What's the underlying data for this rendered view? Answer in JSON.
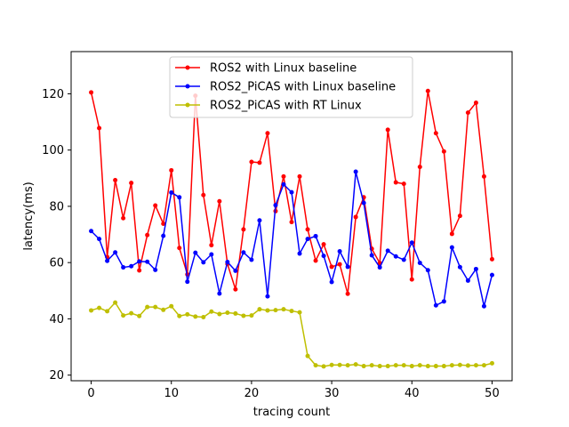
{
  "chart_data": {
    "type": "line",
    "title": "",
    "xlabel": "tracing count",
    "ylabel": "latency(ms)",
    "xlim": [
      -2.5,
      52.5
    ],
    "ylim": [
      18,
      135
    ],
    "xticks": [
      0,
      10,
      20,
      30,
      40,
      50
    ],
    "yticks": [
      20,
      40,
      60,
      80,
      100,
      120
    ],
    "grid": false,
    "legend_position": "upper center",
    "x": [
      0,
      1,
      2,
      3,
      4,
      5,
      6,
      7,
      8,
      9,
      10,
      11,
      12,
      13,
      14,
      15,
      16,
      17,
      18,
      19,
      20,
      21,
      22,
      23,
      24,
      25,
      26,
      27,
      28,
      29,
      30,
      31,
      32,
      33,
      34,
      35,
      36,
      37,
      38,
      39,
      40,
      41,
      42,
      43,
      44,
      45,
      46,
      47,
      48,
      49,
      50
    ],
    "series": [
      {
        "name": "ROS2 with Linux baseline",
        "color": "#ff0000",
        "values": [
          120.5,
          107.8,
          62,
          89.3,
          75.8,
          88.3,
          57.2,
          69.8,
          80.3,
          73.8,
          92.8,
          65.2,
          55.8,
          119.3,
          84,
          66.2,
          81.8,
          59.5,
          50.5,
          71.8,
          95.8,
          95.5,
          106,
          78.3,
          90.6,
          74.4,
          90.6,
          71.8,
          60.7,
          66.5,
          58.5,
          59.4,
          48.9,
          76.2,
          83.2,
          64.9,
          59.8,
          107.2,
          88.5,
          88,
          54,
          94,
          121,
          106,
          99.5,
          70.2,
          76.6,
          113.3,
          116.8,
          90.6,
          61.2
        ]
      },
      {
        "name": "ROS2_PiCAS with Linux baseline",
        "color": "#0000ff",
        "values": [
          71.2,
          68.4,
          60.6,
          63.6,
          58.3,
          58.7,
          60.4,
          60.3,
          57.4,
          69.5,
          84.9,
          83.2,
          53.2,
          63.5,
          60.1,
          62.9,
          49,
          60.2,
          57.1,
          63.6,
          61,
          75,
          48,
          80.4,
          87.8,
          85,
          63.2,
          68.4,
          69.4,
          62.4,
          53.1,
          64,
          58.5,
          92.3,
          81.2,
          62.6,
          58.3,
          64.2,
          62.2,
          61,
          67.1,
          59.9,
          57.3,
          44.8,
          46.2,
          65.4,
          58.4,
          53.6,
          57.7,
          44.5,
          55.6
        ]
      },
      {
        "name": "ROS2_PiCAS with RT Linux",
        "color": "#bfbf00",
        "values": [
          43,
          43.9,
          42.7,
          45.8,
          41.2,
          42,
          41,
          44.2,
          44.2,
          43.2,
          44.5,
          41,
          41.6,
          40.8,
          40.6,
          42.6,
          41.7,
          42.2,
          41.9,
          41.1,
          41.2,
          43.4,
          43,
          43.1,
          43.4,
          42.8,
          42.3,
          26.8,
          23.5,
          23.1,
          23.6,
          23.6,
          23.5,
          23.8,
          23.2,
          23.5,
          23.2,
          23.2,
          23.5,
          23.5,
          23.2,
          23.5,
          23.2,
          23.2,
          23.2,
          23.5,
          23.6,
          23.4,
          23.5,
          23.5,
          24.2
        ]
      }
    ]
  }
}
